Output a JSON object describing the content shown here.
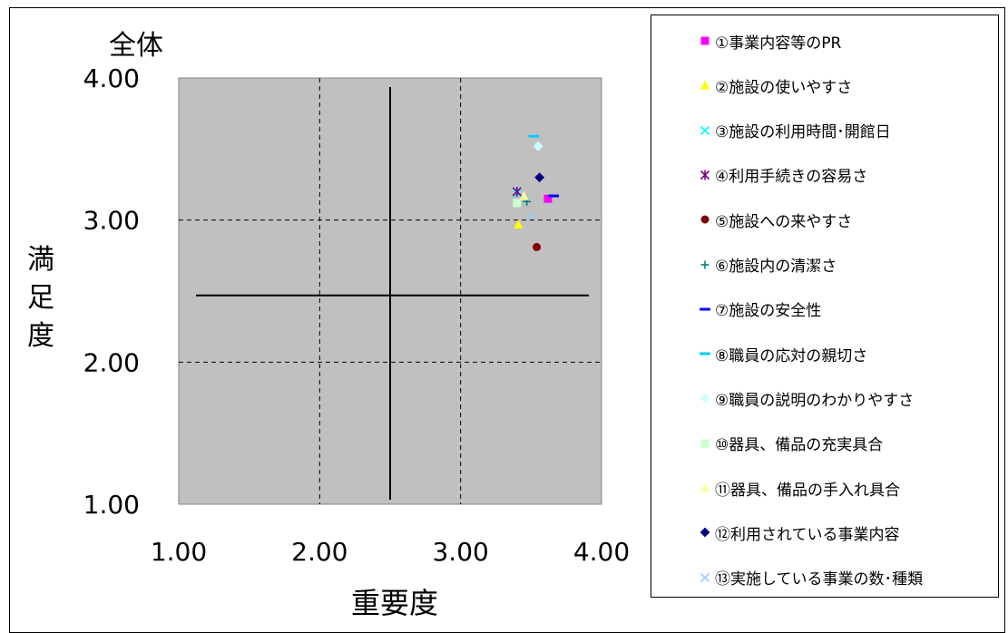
{
  "chart_data": {
    "type": "scatter",
    "title": "全体",
    "xlabel": "重要度",
    "ylabel": "満足度",
    "xlim": [
      1.0,
      4.0
    ],
    "ylim": [
      1.0,
      4.0
    ],
    "xticks": [
      "1.00",
      "2.00",
      "3.00",
      "4.00"
    ],
    "yticks": [
      "1.00",
      "2.00",
      "3.00",
      "4.00"
    ],
    "grid": "dashed at 2.00 and 3.00",
    "plot_background": "#C0C0C0",
    "reference_lines": {
      "x": 2.5,
      "y": 2.47
    },
    "legend_position": "right",
    "series": [
      {
        "name": "①事業内容等のPR",
        "marker": "square",
        "color": "#FF00FF",
        "x": 3.62,
        "y": 3.15
      },
      {
        "name": "②施設の使いやすさ",
        "marker": "triangle",
        "color": "#FFFF00",
        "x": 3.41,
        "y": 2.97
      },
      {
        "name": "③施設の利用時間･開館日",
        "marker": "x",
        "color": "#00FFFF",
        "x": 3.4,
        "y": 3.19
      },
      {
        "name": "④利用手続きの容易さ",
        "marker": "star",
        "color": "#800080",
        "x": 3.4,
        "y": 3.2
      },
      {
        "name": "⑤施設への来やすさ",
        "marker": "circle",
        "color": "#800000",
        "x": 3.54,
        "y": 2.81
      },
      {
        "name": "⑥施設内の清潔さ",
        "marker": "plus",
        "color": "#008080",
        "x": 3.47,
        "y": 3.13
      },
      {
        "name": "⑦施設の安全性",
        "marker": "dash",
        "color": "#0000FF",
        "x": 3.66,
        "y": 3.17
      },
      {
        "name": "⑧職員の応対の親切さ",
        "marker": "dash",
        "color": "#00CCFF",
        "x": 3.52,
        "y": 3.59
      },
      {
        "name": "⑨職員の説明のわかりやすさ",
        "marker": "diamond",
        "color": "#CCFFFF",
        "x": 3.55,
        "y": 3.52
      },
      {
        "name": "⑩器具、備品の充実具合",
        "marker": "square",
        "color": "#CCFFCC",
        "x": 3.4,
        "y": 3.12
      },
      {
        "name": "⑪器具、備品の手入れ具合",
        "marker": "triangle",
        "color": "#FFFF99",
        "x": 3.45,
        "y": 3.17
      },
      {
        "name": "⑫利用されている事業内容",
        "marker": "diamond",
        "color": "#000080",
        "x": 3.56,
        "y": 3.3
      },
      {
        "name": "⑬実施している事業の数･種類",
        "marker": "x",
        "color": "#99CCFF",
        "x": 3.5,
        "y": 3.03
      }
    ]
  }
}
